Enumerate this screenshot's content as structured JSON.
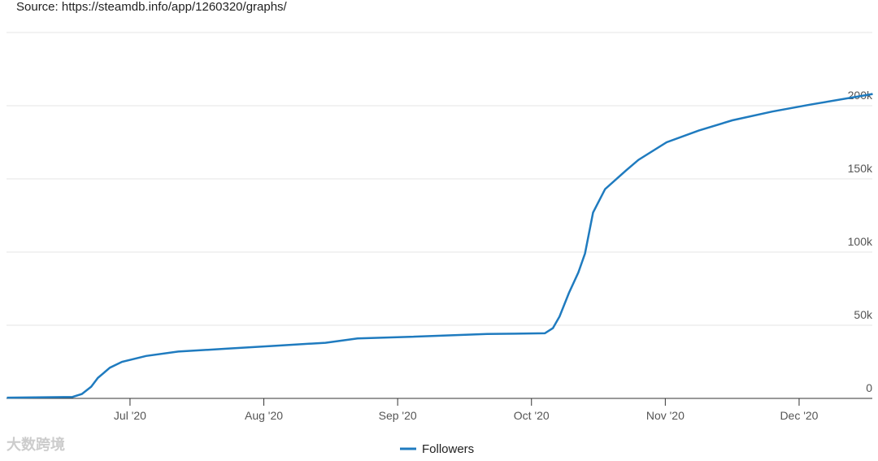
{
  "chart_data": {
    "type": "line",
    "source": "Source: https://steamdb.info/app/1260320/graphs/",
    "watermark": "大数跨境",
    "xlim": [
      6.077,
      12.547
    ],
    "xticks": [
      {
        "value": 7,
        "label": "Jul '20"
      },
      {
        "value": 8,
        "label": "Aug '20"
      },
      {
        "value": 9,
        "label": "Sep '20"
      },
      {
        "value": 10,
        "label": "Oct '20"
      },
      {
        "value": 11,
        "label": "Nov '20"
      },
      {
        "value": 12,
        "label": "Dec '20"
      }
    ],
    "ylim": [
      0,
      250000
    ],
    "yticks": [
      0,
      {
        "value": 50000,
        "label": "50k"
      },
      {
        "value": 100000,
        "label": "100k"
      },
      {
        "value": 150000,
        "label": "150k"
      },
      {
        "value": 200000,
        "label": "200k"
      },
      250000
    ],
    "grid": true,
    "legend": "bottom",
    "series": [
      {
        "name": "Followers",
        "color": "#1f7bbf",
        "x": [
          6.08,
          6.57,
          6.64,
          6.71,
          6.76,
          6.85,
          6.94,
          7.12,
          7.36,
          7.73,
          8.09,
          8.46,
          8.7,
          9.07,
          9.67,
          10.1,
          10.16,
          10.21,
          10.28,
          10.35,
          10.4,
          10.46,
          10.55,
          10.71,
          10.8,
          11.01,
          11.25,
          11.5,
          11.8,
          12.1,
          12.55
        ],
        "values": [
          500,
          1000,
          3000,
          8000,
          14000,
          21000,
          25000,
          29000,
          32000,
          34000,
          36000,
          38000,
          41000,
          42000,
          44000,
          44500,
          48000,
          56000,
          72000,
          86000,
          99000,
          127000,
          143000,
          156000,
          163000,
          175000,
          183000,
          190000,
          196000,
          201000,
          208000
        ]
      }
    ]
  }
}
